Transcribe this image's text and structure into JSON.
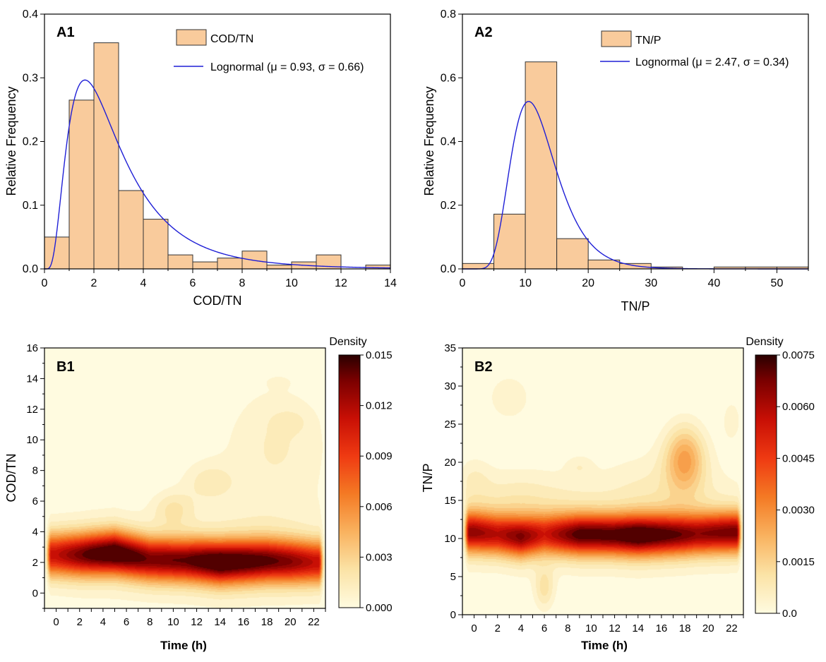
{
  "colors": {
    "bar_fill": "#f9cb9c",
    "bar_stroke": "#333333",
    "curve": "#1f1fd6",
    "heat_stops": [
      "#fffbe0",
      "#fbe3a6",
      "#f9b25f",
      "#f47a24",
      "#ef3a12",
      "#c80f05",
      "#7a0000",
      "#2a0000"
    ]
  },
  "chart_data": [
    {
      "id": "A1",
      "type": "bar",
      "panel_label": "A1",
      "xlabel": "COD/TN",
      "ylabel": "Relative Frequency",
      "xlim": [
        0,
        14
      ],
      "ylim": [
        0,
        0.4
      ],
      "xticks": [
        "0",
        "2",
        "4",
        "6",
        "8",
        "10",
        "12",
        "14"
      ],
      "yticks": [
        "0.0",
        "0.1",
        "0.2",
        "0.3",
        "0.4"
      ],
      "bin_width": 1,
      "bins": [
        0,
        1,
        2,
        3,
        4,
        5,
        6,
        7,
        8,
        9,
        10,
        11,
        13
      ],
      "values": [
        0.05,
        0.265,
        0.355,
        0.123,
        0.078,
        0.022,
        0.011,
        0.017,
        0.028,
        0.006,
        0.011,
        0.022,
        0.006
      ],
      "fit": {
        "mu": 0.93,
        "sigma": 0.66
      },
      "legend": {
        "hist": "COD/TN",
        "fit": "Lognormal (μ = 0.93, σ = 0.66)"
      }
    },
    {
      "id": "A2",
      "type": "bar",
      "panel_label": "A2",
      "xlabel": "TN/P",
      "ylabel": "Relative Frequency",
      "xlim": [
        0,
        55
      ],
      "ylim": [
        0,
        0.8
      ],
      "xticks": [
        "0",
        "10",
        "20",
        "30",
        "40",
        "50"
      ],
      "yticks": [
        "0.0",
        "0.2",
        "0.4",
        "0.6",
        "0.8"
      ],
      "bin_width": 5,
      "bins": [
        0,
        5,
        10,
        15,
        20,
        25,
        30,
        40,
        45,
        50
      ],
      "values": [
        0.017,
        0.172,
        0.65,
        0.095,
        0.028,
        0.017,
        0.006,
        0.006,
        0.006,
        0.006
      ],
      "fit": {
        "mu": 2.47,
        "sigma": 0.34
      },
      "legend": {
        "hist": "TN/P",
        "fit": "Lognormal (μ = 2.47, σ = 0.34)"
      }
    },
    {
      "id": "B1",
      "type": "heatmap",
      "panel_label": "B1",
      "xlabel": "Time (h)",
      "ylabel": "COD/TN",
      "xlim": [
        -1,
        23
      ],
      "ylim": [
        -1,
        16
      ],
      "xticks": [
        "0",
        "2",
        "4",
        "6",
        "8",
        "10",
        "12",
        "14",
        "16",
        "18",
        "20",
        "22"
      ],
      "yticks": [
        "0",
        "2",
        "4",
        "6",
        "8",
        "10",
        "12",
        "14",
        "16"
      ],
      "colorbar_title": "Density",
      "colorbar_max": 0.015,
      "colorbar_ticks": [
        "0.015",
        "0.012",
        "0.009",
        "0.006",
        "0.003",
        "0.000"
      ],
      "ridge": [
        [
          0,
          2.5
        ],
        [
          2,
          2.5
        ],
        [
          5,
          2.6
        ],
        [
          8,
          2.2
        ],
        [
          12,
          2.1
        ],
        [
          14,
          2.0
        ],
        [
          18,
          2.1
        ],
        [
          22,
          2.0
        ]
      ],
      "ridge_peak": [
        [
          0,
          0.0105
        ],
        [
          3,
          0.0135
        ],
        [
          5,
          0.0148
        ],
        [
          8,
          0.0125
        ],
        [
          11,
          0.0128
        ],
        [
          14,
          0.0148
        ],
        [
          17,
          0.0135
        ],
        [
          20,
          0.012
        ],
        [
          22,
          0.0105
        ]
      ],
      "ridge_width": 0.95,
      "blobs": [
        [
          10,
          5.5,
          1.2,
          0.8,
          0.002
        ],
        [
          13,
          7.3,
          1.5,
          0.9,
          0.0015
        ],
        [
          19,
          10.5,
          3.0,
          2.5,
          0.0012
        ],
        [
          18,
          6.5,
          4.0,
          3.0,
          0.0008
        ],
        [
          20,
          11.2,
          1.0,
          0.5,
          0.0008
        ],
        [
          5,
          8.7,
          1.2,
          0.4,
          0.0007
        ],
        [
          7.5,
          10.3,
          0.8,
          0.4,
          0.0006
        ],
        [
          0,
          8.5,
          0.7,
          0.4,
          0.0006
        ],
        [
          19,
          13.8,
          0.8,
          0.3,
          0.0005
        ],
        [
          0.5,
          12.0,
          1.5,
          0.5,
          0.0004
        ]
      ]
    },
    {
      "id": "B2",
      "type": "heatmap",
      "panel_label": "B2",
      "xlabel": "Time (h)",
      "ylabel": "TN/P",
      "xlim": [
        -1,
        23
      ],
      "ylim": [
        0,
        35
      ],
      "xticks": [
        "0",
        "2",
        "4",
        "6",
        "8",
        "10",
        "12",
        "14",
        "16",
        "18",
        "20",
        "22"
      ],
      "yticks": [
        "0",
        "5",
        "10",
        "15",
        "20",
        "25",
        "30",
        "35"
      ],
      "colorbar_title": "Density",
      "colorbar_max": 0.0075,
      "colorbar_ticks": [
        "0.0075",
        "0.0060",
        "0.0045",
        "0.0030",
        "0.0015",
        "0.0"
      ],
      "ridge": [
        [
          0,
          10.8
        ],
        [
          4,
          10.2
        ],
        [
          6,
          10.5
        ],
        [
          10,
          10.5
        ],
        [
          14,
          10.4
        ],
        [
          18,
          10.5
        ],
        [
          22,
          10.8
        ]
      ],
      "ridge_peak": [
        [
          0,
          0.0058
        ],
        [
          2,
          0.0052
        ],
        [
          4,
          0.006
        ],
        [
          6,
          0.0048
        ],
        [
          9,
          0.0066
        ],
        [
          12,
          0.0066
        ],
        [
          14,
          0.0072
        ],
        [
          16,
          0.0066
        ],
        [
          19,
          0.0058
        ],
        [
          22,
          0.0062
        ]
      ],
      "ridge_width": 1.8,
      "blobs": [
        [
          18,
          20.5,
          1.2,
          3.0,
          0.0025
        ],
        [
          4,
          15.0,
          3.5,
          3.0,
          0.0008
        ],
        [
          16,
          16.0,
          4.0,
          4.0,
          0.0007
        ],
        [
          6,
          3.5,
          0.6,
          2.0,
          0.0012
        ],
        [
          3,
          28.5,
          1.5,
          2.5,
          0.0006
        ],
        [
          22,
          25.5,
          0.6,
          2.0,
          0.0006
        ],
        [
          9,
          19.5,
          0.8,
          1.0,
          0.0005
        ],
        [
          0,
          18.0,
          1.0,
          2.0,
          0.0005
        ]
      ]
    }
  ]
}
